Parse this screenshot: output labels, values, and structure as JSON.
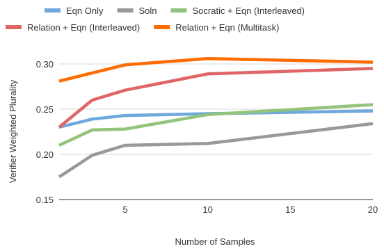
{
  "chart_data": {
    "type": "line",
    "title": "",
    "xlabel": "Number of Samples",
    "ylabel": "Verifier Weighted Plurality",
    "xlim": [
      1,
      20
    ],
    "ylim": [
      0.15,
      0.32
    ],
    "xticks": [
      5,
      10,
      15,
      20
    ],
    "yticks": [
      0.15,
      0.2,
      0.25,
      0.3
    ],
    "ytick_labels": [
      "0.15",
      "0.20",
      "0.25",
      "0.30"
    ],
    "grid": "horizontal",
    "legend_position": "top",
    "series": [
      {
        "name": "Eqn Only",
        "color": "#6fa8dc",
        "points": [
          [
            1,
            0.23
          ],
          [
            3,
            0.239
          ],
          [
            5,
            0.243
          ],
          [
            10,
            0.245
          ],
          [
            20,
            0.248
          ]
        ]
      },
      {
        "name": "Soln",
        "color": "#999999",
        "points": [
          [
            1,
            0.175
          ],
          [
            3,
            0.199
          ],
          [
            5,
            0.21
          ],
          [
            10,
            0.212
          ],
          [
            20,
            0.234
          ]
        ]
      },
      {
        "name": "Socratic + Eqn (Interleaved)",
        "color": "#93c47d",
        "points": [
          [
            1,
            0.21
          ],
          [
            3,
            0.227
          ],
          [
            5,
            0.228
          ],
          [
            10,
            0.244
          ],
          [
            20,
            0.255
          ]
        ]
      },
      {
        "name": "Relation + Eqn (Interleaved)",
        "color": "#e06666",
        "points": [
          [
            1,
            0.23
          ],
          [
            3,
            0.26
          ],
          [
            5,
            0.271
          ],
          [
            10,
            0.289
          ],
          [
            20,
            0.295
          ]
        ]
      },
      {
        "name": "Relation + Eqn (Multitask)",
        "color": "#ff6d01",
        "points": [
          [
            1,
            0.281
          ],
          [
            3,
            0.29
          ],
          [
            5,
            0.299
          ],
          [
            10,
            0.306
          ],
          [
            20,
            0.302
          ]
        ]
      }
    ]
  }
}
